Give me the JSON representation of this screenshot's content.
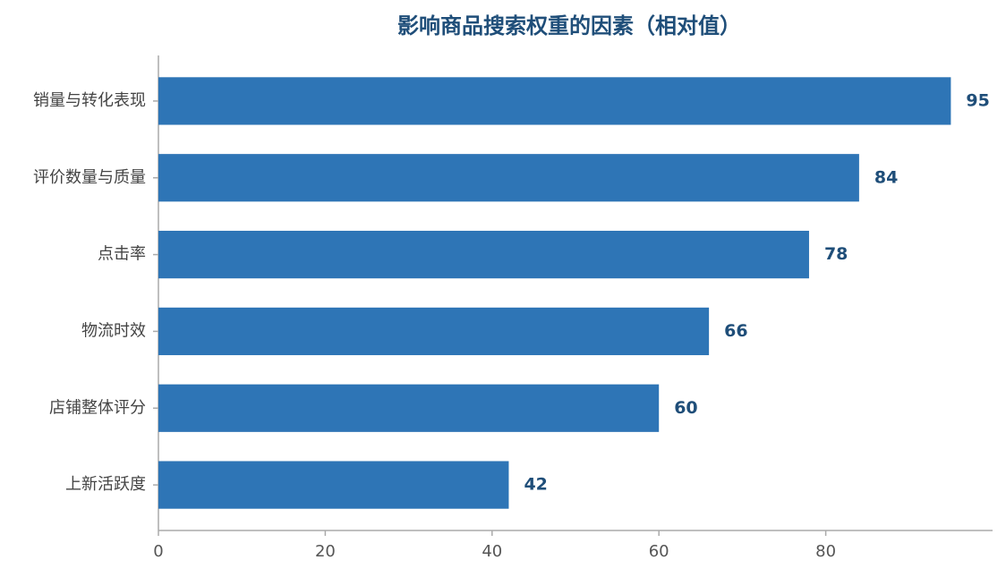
{
  "chart_data": {
    "type": "barh",
    "title": "影响商品搜索权重的因素（相对值）",
    "categories": [
      "销量与转化表现",
      "评价数量与质量",
      "点击率",
      "物流时效",
      "店铺整体评分",
      "上新活跃度"
    ],
    "values": [
      95,
      84,
      78,
      66,
      60,
      42
    ],
    "color": "#2e75b6",
    "xlim": [
      0,
      100
    ],
    "xticks": [
      0,
      20,
      40,
      60,
      80
    ],
    "grid": false
  }
}
